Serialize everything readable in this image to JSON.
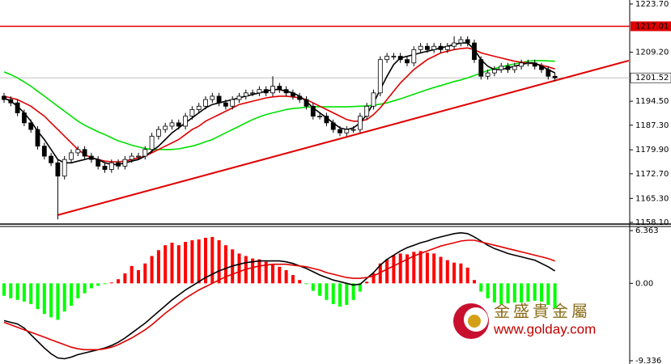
{
  "chart_data": [
    {
      "type": "candlestick",
      "open": [
        1196,
        1195,
        1194,
        1191,
        1188,
        1186,
        1181,
        1178,
        1176,
        1172,
        1177,
        1179,
        1180,
        1178,
        1177,
        1175,
        1174,
        1176,
        1175,
        1177,
        1178,
        1178,
        1180,
        1184,
        1186,
        1187,
        1188,
        1187,
        1190,
        1192,
        1193,
        1195,
        1196,
        1194,
        1193,
        1195,
        1196,
        1197,
        1197,
        1198,
        1197,
        1199,
        1198,
        1197,
        1196,
        1195,
        1193,
        1190,
        1190,
        1188,
        1186,
        1185,
        1186,
        1186,
        1190,
        1193,
        1197,
        1207,
        1208,
        1208,
        1207,
        1206,
        1210,
        1211,
        1210,
        1211,
        1210,
        1211,
        1212,
        1213,
        1212,
        1207,
        1202,
        1203,
        1204,
        1205,
        1204,
        1205,
        1206,
        1206,
        1205,
        1204,
        1202
      ],
      "high": [
        1197,
        1196,
        1195,
        1192,
        1189,
        1187,
        1182,
        1179,
        1177,
        1178,
        1180,
        1181,
        1181,
        1179,
        1178,
        1176,
        1177,
        1177,
        1178,
        1179,
        1179,
        1181,
        1185,
        1187,
        1188,
        1189,
        1189,
        1191,
        1193,
        1194,
        1196,
        1197,
        1197,
        1195,
        1196,
        1197,
        1198,
        1198,
        1199,
        1199,
        1202,
        1200,
        1199,
        1198,
        1197,
        1196,
        1194,
        1191,
        1191,
        1189,
        1187,
        1187,
        1187,
        1191,
        1194,
        1198,
        1208,
        1209,
        1209,
        1209,
        1208,
        1211,
        1212,
        1212,
        1212,
        1212,
        1212,
        1214,
        1214,
        1214,
        1213,
        1208,
        1204,
        1205,
        1206,
        1206,
        1206,
        1207,
        1207,
        1207,
        1206,
        1205,
        1203
      ],
      "low": [
        1194,
        1193,
        1190,
        1187,
        1185,
        1180,
        1177,
        1175,
        1159,
        1171,
        1176,
        1178,
        1177,
        1176,
        1174,
        1173,
        1173,
        1174,
        1174,
        1176,
        1177,
        1177,
        1179,
        1183,
        1185,
        1186,
        1186,
        1186,
        1189,
        1191,
        1192,
        1194,
        1193,
        1192,
        1192,
        1194,
        1195,
        1196,
        1196,
        1196,
        1196,
        1197,
        1196,
        1195,
        1194,
        1192,
        1189,
        1189,
        1187,
        1185,
        1184,
        1184,
        1185,
        1185,
        1189,
        1192,
        1196,
        1206,
        1207,
        1206,
        1205,
        1205,
        1209,
        1209,
        1209,
        1209,
        1209,
        1210,
        1211,
        1211,
        1206,
        1201,
        1201,
        1202,
        1203,
        1203,
        1203,
        1204,
        1205,
        1204,
        1203,
        1201,
        1200.5
      ],
      "close": [
        1195,
        1194,
        1191,
        1188,
        1186,
        1181,
        1178,
        1176,
        1172,
        1177,
        1179,
        1180,
        1178,
        1177,
        1175,
        1174,
        1176,
        1175,
        1177,
        1178,
        1178,
        1180,
        1184,
        1186,
        1187,
        1188,
        1187,
        1190,
        1192,
        1193,
        1195,
        1196,
        1194,
        1193,
        1195,
        1196,
        1197,
        1197,
        1198,
        1197,
        1199,
        1198,
        1197,
        1196,
        1195,
        1193,
        1190,
        1190,
        1188,
        1186,
        1185,
        1186,
        1186,
        1190,
        1193,
        1197,
        1207,
        1208,
        1208,
        1207,
        1206,
        1210,
        1211,
        1210,
        1211,
        1210,
        1211,
        1212,
        1213,
        1212,
        1207,
        1202,
        1203,
        1204,
        1205,
        1204,
        1205,
        1206,
        1206,
        1205,
        1204,
        1202,
        1201.5
      ],
      "lines": [
        {
          "color": "#00e000",
          "values": [
            1203.3,
            1202.5,
            1201.5,
            1200.3,
            1199,
            1197.5,
            1196,
            1194.5,
            1193,
            1191.5,
            1190,
            1188.5,
            1187.3,
            1186.3,
            1185.3,
            1184.5,
            1183.5,
            1182.6,
            1182,
            1181.3,
            1180.8,
            1180.3,
            1180,
            1180,
            1180,
            1180,
            1180.2,
            1180.6,
            1181,
            1181.6,
            1182.3,
            1183,
            1184,
            1185,
            1186,
            1187,
            1188,
            1189,
            1189.8,
            1190.5,
            1191,
            1191.5,
            1192,
            1192.3,
            1192.5,
            1192.7,
            1192.8,
            1192.8,
            1192.8,
            1192.8,
            1192.8,
            1192.8,
            1192.9,
            1193,
            1193.1,
            1193.3,
            1193.6,
            1194,
            1194.6,
            1195.2,
            1195.9,
            1196.6,
            1197.3,
            1198,
            1198.6,
            1199.2,
            1199.8,
            1200.4,
            1200.9,
            1201.5,
            1202.2,
            1203,
            1203.7,
            1204.3,
            1204.8,
            1205.3,
            1205.7,
            1206.1,
            1206.5,
            1206.7,
            1206.7,
            1206.6,
            1206.5
          ]
        },
        {
          "color": "#e00000",
          "values": [
            1196,
            1195.5,
            1195,
            1194,
            1193,
            1191.5,
            1190,
            1188,
            1186,
            1184,
            1182,
            1180,
            1178.5,
            1177.5,
            1177,
            1176.5,
            1176.3,
            1176.3,
            1176.5,
            1177,
            1177.5,
            1178,
            1179,
            1180,
            1181,
            1182,
            1183,
            1184.5,
            1186,
            1187,
            1188.5,
            1189.5,
            1190.5,
            1191.5,
            1192.5,
            1193.5,
            1194,
            1194.5,
            1195,
            1195.5,
            1195.8,
            1196,
            1196,
            1195.8,
            1195.5,
            1195,
            1194,
            1193,
            1192,
            1191,
            1190,
            1189,
            1188.5,
            1188.5,
            1189,
            1190.5,
            1192.5,
            1195,
            1197.5,
            1200,
            1202,
            1204,
            1205.5,
            1207,
            1208,
            1209,
            1209.5,
            1210,
            1210.3,
            1210.5,
            1210,
            1209,
            1208.5,
            1208,
            1207.5,
            1207,
            1206.5,
            1206.2,
            1206,
            1205.7,
            1205.3,
            1204.8,
            1204.2
          ]
        },
        {
          "color": "#000000",
          "values": [
            1195.5,
            1194.5,
            1193,
            1191,
            1188.5,
            1185.5,
            1183,
            1180,
            1177,
            1176,
            1176,
            1176.5,
            1177,
            1177.5,
            1177,
            1176,
            1175.5,
            1175.5,
            1176,
            1176.5,
            1177,
            1178,
            1179.5,
            1181,
            1183,
            1185,
            1186.5,
            1188,
            1189.5,
            1191,
            1192.5,
            1193.5,
            1194,
            1194.5,
            1195,
            1195.5,
            1196,
            1196.5,
            1197,
            1197.5,
            1198,
            1198,
            1197.5,
            1197,
            1196,
            1194.5,
            1192.5,
            1191,
            1189.5,
            1188,
            1186.5,
            1186,
            1186.5,
            1188,
            1190.5,
            1194,
            1198,
            1202,
            1205.5,
            1207.5,
            1208,
            1208.5,
            1209,
            1209.5,
            1210,
            1210.5,
            1211,
            1211.5,
            1212,
            1212,
            1210,
            1207,
            1205,
            1204,
            1204,
            1204.5,
            1205,
            1205.5,
            1206,
            1206,
            1205,
            1204,
            1203
          ]
        }
      ],
      "trendline": {
        "color": "#e00000",
        "index": [
          8,
          93
        ],
        "price": [
          1160.3,
          1206.7
        ]
      },
      "level": {
        "value": 1217.01,
        "color": "#e00000"
      },
      "last_price": 1201.52,
      "ylim": [
        1157.6,
        1224.9
      ],
      "yticks": [
        {
          "value": 1223.7,
          "label": "1223.70"
        },
        {
          "value": 1209.2,
          "label": "1209.20"
        },
        {
          "value": 1194.5,
          "label": "1194.50"
        },
        {
          "value": 1187.3,
          "label": "1187.30"
        },
        {
          "value": 1179.9,
          "label": "1179.90"
        },
        {
          "value": 1172.7,
          "label": "1172.70"
        },
        {
          "value": 1165.3,
          "label": "1165.30"
        },
        {
          "value": 1158.1,
          "label": "1158.10"
        }
      ]
    },
    {
      "type": "macd",
      "histogram": [
        -1.5,
        -1.8,
        -2.0,
        -2.2,
        -2.5,
        -3.1,
        -3.7,
        -4.1,
        -4.4,
        -3.4,
        -2.7,
        -1.8,
        -1.2,
        -0.6,
        -0.3,
        -0.1,
        0.1,
        0.5,
        1.2,
        2.1,
        1.6,
        2.4,
        3.3,
        4.0,
        4.6,
        4.9,
        4.6,
        5.0,
        5.2,
        5.3,
        5.5,
        5.6,
        5.2,
        4.6,
        4.1,
        3.6,
        3.3,
        3.0,
        2.9,
        2.6,
        2.3,
        2.0,
        1.6,
        1.0,
        0.4,
        -0.1,
        -0.9,
        -1.5,
        -2.0,
        -2.5,
        -2.8,
        -2.6,
        -2.0,
        -1.0,
        0.2,
        1.2,
        2.4,
        2.9,
        3.4,
        3.6,
        3.5,
        3.8,
        3.9,
        3.7,
        3.6,
        3.2,
        2.8,
        2.5,
        2.4,
        1.9,
        0.4,
        -1.0,
        -1.8,
        -2.3,
        -2.5,
        -2.4,
        -2.3,
        -2.3,
        -2.2,
        -2.1,
        -2.2,
        -2.6,
        -3.0
      ],
      "up_color": "#ff0000",
      "down_color": "#00ff00",
      "lines": [
        {
          "color": "#000000",
          "values": [
            -4.5,
            -4.7,
            -4.9,
            -5.4,
            -6.2,
            -7.0,
            -7.8,
            -8.5,
            -9.0,
            -9.1,
            -8.9,
            -8.6,
            -8.4,
            -8.2,
            -8.0,
            -7.8,
            -7.5,
            -7.1,
            -6.6,
            -6.0,
            -5.4,
            -4.8,
            -4.1,
            -3.4,
            -2.7,
            -2.0,
            -1.4,
            -0.8,
            -0.3,
            0.2,
            0.7,
            1.1,
            1.5,
            1.8,
            2.1,
            2.3,
            2.5,
            2.6,
            2.7,
            2.7,
            2.7,
            2.7,
            2.6,
            2.4,
            2.1,
            1.8,
            1.4,
            1.0,
            0.7,
            0.4,
            0.2,
            0.0,
            -0.2,
            -0.1,
            0.6,
            1.3,
            2.2,
            2.9,
            3.4,
            3.9,
            4.3,
            4.6,
            4.9,
            5.1,
            5.4,
            5.6,
            5.8,
            6.0,
            6.1,
            6.0,
            5.6,
            5.1,
            4.6,
            4.2,
            3.9,
            3.6,
            3.4,
            3.2,
            3.0,
            2.8,
            2.4,
            2.0,
            1.5
          ]
        },
        {
          "color": "#e00000",
          "values": [
            -4.7,
            -5.0,
            -5.3,
            -5.6,
            -5.9,
            -6.2,
            -6.5,
            -6.8,
            -7.1,
            -7.4,
            -7.7,
            -7.9,
            -8.0,
            -8.0,
            -8.0,
            -7.9,
            -7.7,
            -7.4,
            -7.0,
            -6.6,
            -6.1,
            -5.6,
            -5.0,
            -4.3,
            -3.6,
            -3.0,
            -2.4,
            -1.8,
            -1.3,
            -0.8,
            -0.4,
            0.0,
            0.4,
            0.8,
            1.1,
            1.4,
            1.7,
            1.9,
            2.1,
            2.2,
            2.3,
            2.3,
            2.3,
            2.2,
            2.1,
            2.0,
            1.8,
            1.6,
            1.3,
            1.1,
            0.9,
            0.7,
            0.6,
            0.6,
            0.7,
            0.9,
            1.3,
            1.7,
            2.1,
            2.5,
            2.9,
            3.3,
            3.6,
            3.9,
            4.2,
            4.5,
            4.7,
            4.9,
            5.1,
            5.2,
            5.2,
            5.0,
            4.8,
            4.6,
            4.4,
            4.2,
            4.0,
            3.8,
            3.6,
            3.4,
            3.2,
            3.0,
            2.7
          ]
        }
      ],
      "ylim": [
        -9.73,
        6.86
      ],
      "yticks": [
        6.363,
        {
          "value": 0,
          "label": "0.00"
        },
        -9.336
      ]
    }
  ],
  "watermark": {
    "name": "金盛貴金屬",
    "url": "www.golday.com"
  }
}
